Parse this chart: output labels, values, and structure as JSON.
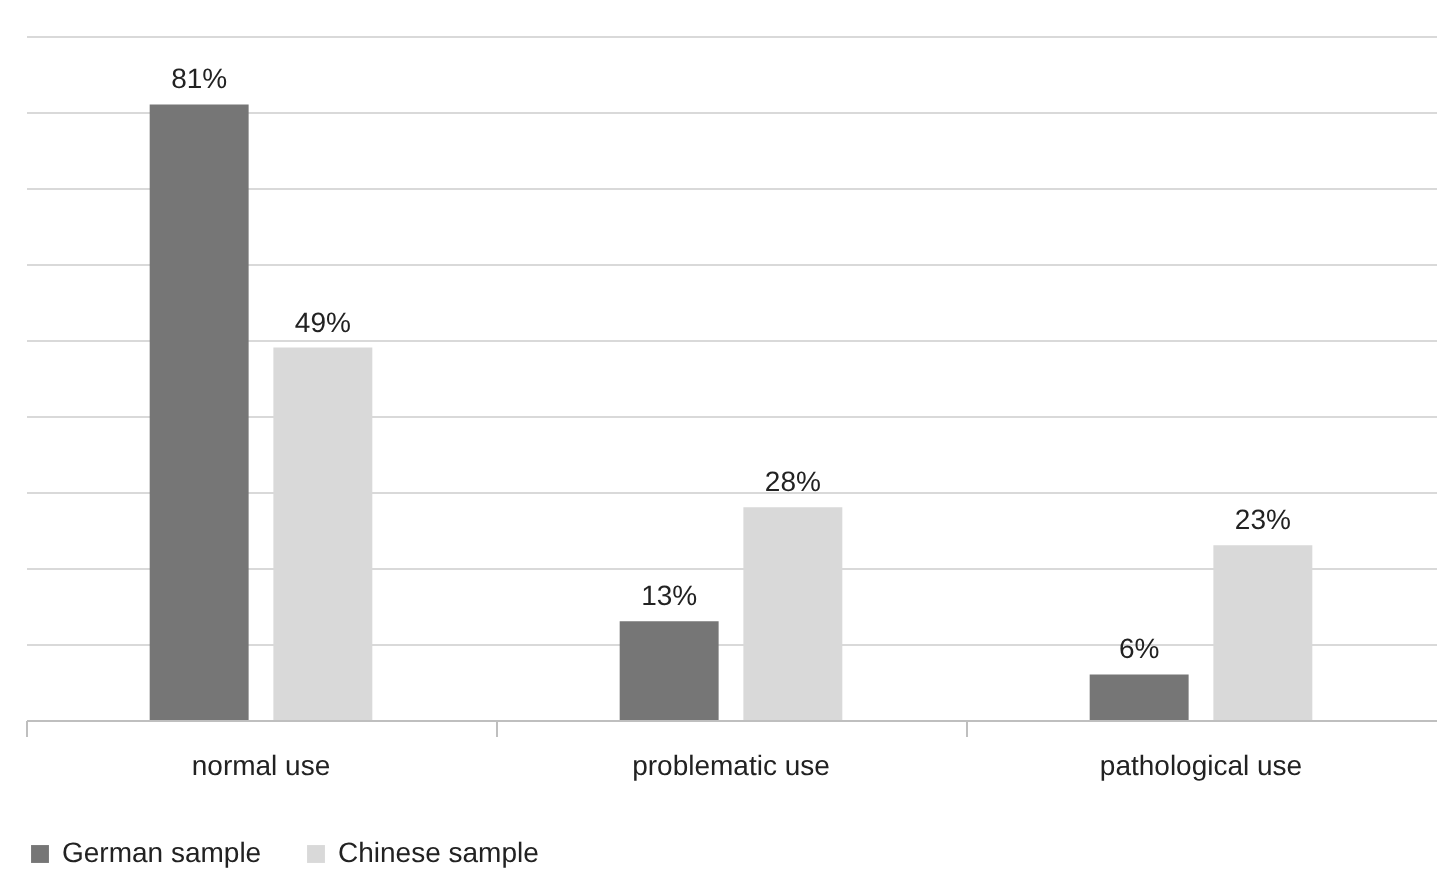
{
  "chart_data": {
    "type": "bar",
    "categories": [
      "normal use",
      "problematic use",
      "pathological use"
    ],
    "series": [
      {
        "name": "German sample",
        "color": "#767676",
        "values": [
          81,
          13,
          6
        ],
        "value_labels": [
          "81%",
          "13%",
          "6%"
        ]
      },
      {
        "name": "Chinese sample",
        "color": "#d9d9d9",
        "values": [
          49,
          28,
          23
        ],
        "value_labels": [
          "49%",
          "28%",
          "23%"
        ]
      }
    ],
    "ylim": [
      0,
      90
    ],
    "yticks": [
      {
        "value": 0,
        "label": null
      },
      {
        "value": 10,
        "label": null
      },
      {
        "value": 20,
        "label": null
      },
      {
        "value": 30,
        "label": null
      },
      {
        "value": 40,
        "label": null
      },
      {
        "value": 50,
        "label": null
      },
      {
        "value": 60,
        "label": null
      },
      {
        "value": 70,
        "label": null
      },
      {
        "value": 80,
        "label": null
      },
      {
        "value": 90,
        "label": null
      }
    ],
    "grid": "y",
    "tick_labels": "x",
    "legend": "bottom"
  }
}
